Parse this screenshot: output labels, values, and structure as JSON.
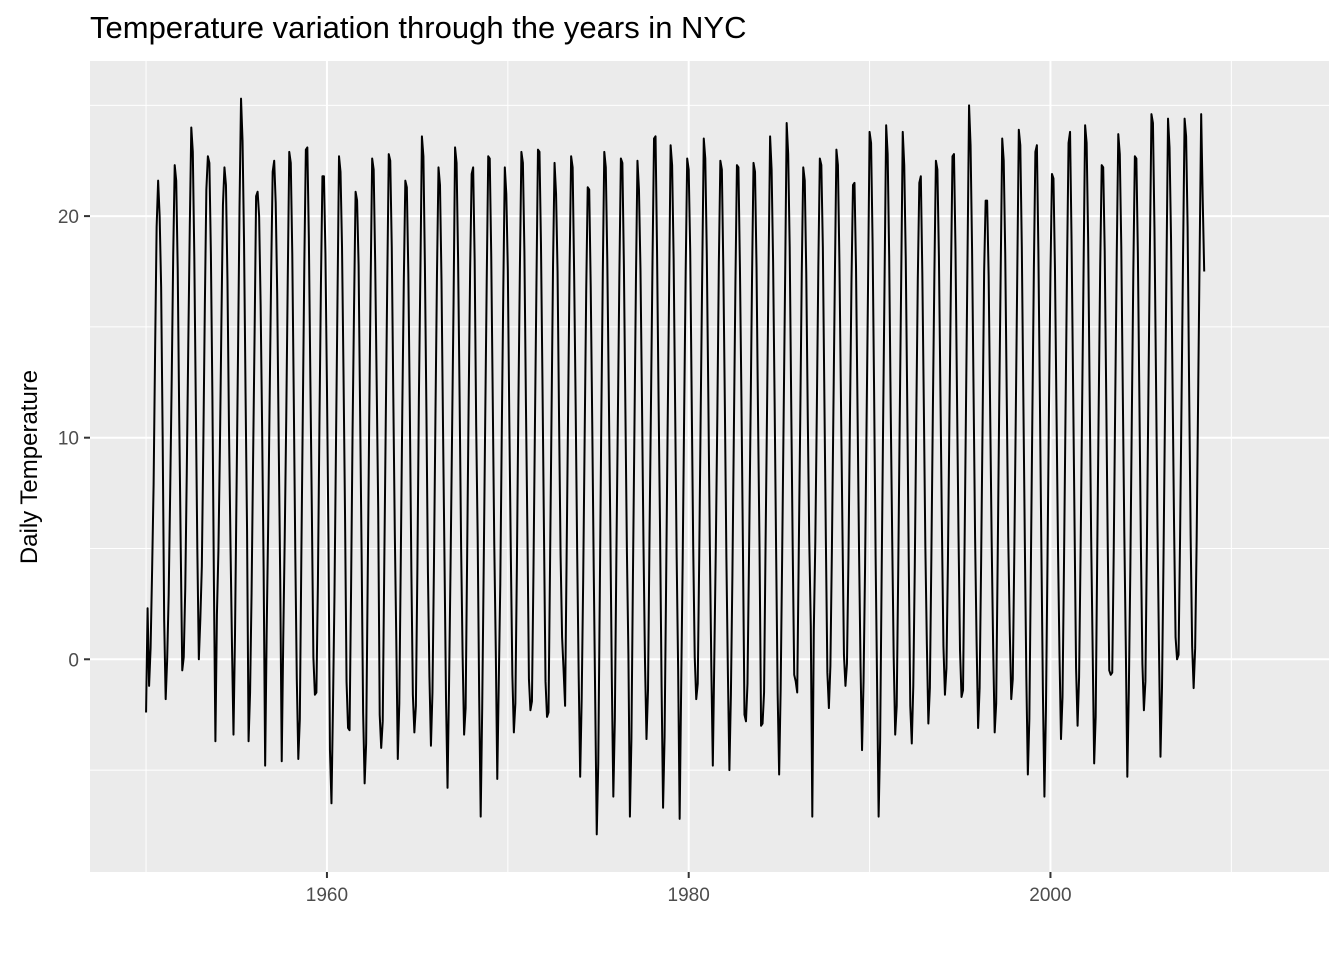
{
  "chart_data": {
    "type": "line",
    "title": "Temperature variation through the years in NYC",
    "xlabel": "",
    "ylabel": "Daily Temperature",
    "xlim": [
      1946.9,
      2015.4
    ],
    "ylim": [
      -9.6,
      27.0
    ],
    "x_ticks": [
      1960,
      1980,
      2000
    ],
    "y_ticks": [
      0,
      10,
      20
    ],
    "grid": true,
    "legend": "none",
    "colors": {
      "panel": "#ebebeb",
      "grid": "#ffffff",
      "line": "#000000",
      "tick_text": "#4d4d4d"
    },
    "series": [
      {
        "x_start": 1950.0,
        "x_step_years": 0.0833333,
        "values_note_unit": "degrees",
        "values": [
          -2.4,
          2.3,
          -1.2,
          0.5,
          4.0,
          7.9,
          14.0,
          19.5,
          21.6,
          20.0,
          16.8,
          10.1,
          1.8,
          -1.8,
          0.0,
          2.9,
          7.6,
          12.6,
          18.2,
          22.3,
          21.6,
          17.6,
          10.9,
          5.0,
          -0.5,
          0.1,
          3.2,
          8.4,
          14.2,
          19.5,
          24.0,
          22.9,
          18.2,
          11.5,
          5.0,
          0.0,
          1.8,
          4.2,
          9.8,
          16.0,
          21.2,
          22.7,
          22.4,
          18.3,
          11.9,
          3.5,
          -3.7,
          2.0,
          4.9,
          9.6,
          15.3,
          20.5,
          22.2,
          21.4,
          17.1,
          10.5,
          5.2,
          0.6,
          -3.4,
          1.1,
          7.5,
          13.8,
          20.4,
          25.3,
          23.4,
          18.8,
          12.0,
          5.8,
          -3.7,
          -1.5,
          3.0,
          9.0,
          14.7,
          20.9,
          21.1,
          20.0,
          16.0,
          10.4,
          4.0,
          -4.8,
          1.2,
          6.0,
          11.8,
          17.5,
          22.0,
          22.5,
          20.6,
          16.5,
          9.8,
          3.6,
          -4.6,
          0.9,
          5.5,
          10.9,
          17.2,
          22.9,
          22.4,
          18.3,
          11.7,
          4.8,
          -0.9,
          -4.5,
          -2.7,
          4.5,
          11.2,
          17.9,
          23.0,
          23.1,
          19.0,
          12.6,
          6.6,
          0.1,
          -1.6,
          -1.5,
          3.4,
          10.5,
          16.9,
          21.8,
          21.8,
          18.3,
          12.3,
          5.4,
          -4.1,
          -6.5,
          -2.1,
          2.9,
          9.7,
          16.3,
          22.7,
          22.0,
          18.6,
          12.8,
          6.5,
          -1.0,
          -3.1,
          -3.2,
          3.1,
          10.3,
          16.0,
          21.1,
          20.7,
          17.8,
          11.2,
          4.7,
          -2.4,
          -5.6,
          -3.8,
          3.3,
          10.5,
          17.1,
          22.6,
          22.1,
          17.9,
          12.4,
          6.8,
          -2.5,
          -4.0,
          -2.8,
          4.0,
          10.6,
          17.0,
          22.8,
          22.5,
          18.6,
          12.0,
          5.8,
          0.9,
          -4.5,
          -2.0,
          4.6,
          11.3,
          17.1,
          21.6,
          21.3,
          17.4,
          11.2,
          4.0,
          -1.6,
          -3.3,
          -2.1,
          4.1,
          11.8,
          17.5,
          23.6,
          22.7,
          17.7,
          11.1,
          3.9,
          -0.8,
          -3.9,
          -1.5,
          4.3,
          11.1,
          17.4,
          22.2,
          21.4,
          17.1,
          10.5,
          4.4,
          -1.8,
          -5.8,
          -1.2,
          4.2,
          10.1,
          16.1,
          23.1,
          22.4,
          18.1,
          11.9,
          5.1,
          0.2,
          -3.4,
          -2.2,
          4.6,
          11.5,
          17.6,
          21.9,
          22.2,
          18.0,
          10.6,
          5.5,
          -1.7,
          -7.1,
          -2.2,
          4.2,
          10.8,
          17.1,
          22.7,
          22.6,
          18.2,
          11.7,
          5.2,
          0.5,
          -5.4,
          -1.0,
          3.4,
          10.3,
          16.7,
          22.2,
          21.0,
          17.6,
          10.7,
          4.7,
          -0.7,
          -3.3,
          -2.0,
          4.1,
          11.4,
          17.6,
          22.9,
          22.4,
          18.4,
          11.6,
          5.7,
          -0.9,
          -2.3,
          -1.9,
          3.9,
          10.6,
          17.0,
          23.0,
          22.9,
          18.7,
          12.4,
          5.6,
          -1.0,
          -2.6,
          -2.4,
          4.2,
          11.0,
          17.8,
          22.4,
          21.0,
          17.5,
          10.8,
          4.7,
          1.0,
          -0.5,
          -2.1,
          4.6,
          11.3,
          17.8,
          22.7,
          22.2,
          17.4,
          11.5,
          4.9,
          -0.7,
          -5.3,
          -1.8,
          3.6,
          10.2,
          16.6,
          21.3,
          21.2,
          16.8,
          10.7,
          4.0,
          -2.0,
          -7.9,
          -4.7,
          2.8,
          10.7,
          17.4,
          22.9,
          22.2,
          18.0,
          12.0,
          5.9,
          -0.9,
          -6.2,
          -2.7,
          4.5,
          10.9,
          17.3,
          22.6,
          22.4,
          17.8,
          11.3,
          4.9,
          0.2,
          -7.1,
          -3.6,
          3.7,
          10.4,
          17.1,
          22.5,
          21.2,
          17.6,
          11.7,
          5.2,
          -0.1,
          -3.6,
          -1.4,
          5.5,
          11.7,
          18.0,
          23.5,
          23.6,
          18.4,
          11.8,
          5.8,
          -1.2,
          -6.7,
          -3.5,
          3.3,
          10.3,
          16.6,
          23.2,
          22.3,
          18.1,
          11.4,
          4.7,
          -0.5,
          -7.2,
          -1.3,
          4.4,
          11.2,
          17.5,
          22.6,
          22.1,
          18.4,
          11.7,
          5.0,
          0.1,
          -1.8,
          -1.1,
          4.7,
          11.4,
          17.6,
          23.5,
          22.6,
          18.3,
          12.0,
          5.3,
          -0.3,
          -4.8,
          0.1,
          5.1,
          11.0,
          17.9,
          22.5,
          22.1,
          17.5,
          11.4,
          4.6,
          -0.6,
          -5.0,
          -1.6,
          3.8,
          10.5,
          17.0,
          22.3,
          22.2,
          17.6,
          11.7,
          4.9,
          -2.5,
          -2.8,
          -1.1,
          4.5,
          10.7,
          17.1,
          22.4,
          22.0,
          17.7,
          11.0,
          5.0,
          -3.0,
          -2.9,
          -1.5,
          5.2,
          11.4,
          17.8,
          23.6,
          22.1,
          17.9,
          11.6,
          4.9,
          -1.5,
          -5.2,
          -1.4,
          4.6,
          11.0,
          17.4,
          24.2,
          22.8,
          18.6,
          11.6,
          5.0,
          -0.7,
          -1.0,
          -1.5,
          4.7,
          10.8,
          17.4,
          22.2,
          21.6,
          17.4,
          10.9,
          5.3,
          1.5,
          -7.1,
          1.3,
          5.3,
          11.2,
          17.7,
          22.6,
          22.3,
          18.6,
          11.9,
          5.4,
          -0.6,
          -2.2,
          -0.3,
          4.9,
          11.2,
          17.4,
          23.0,
          22.3,
          17.9,
          11.8,
          5.9,
          0.2,
          -1.2,
          -0.2,
          4.6,
          11.0,
          17.1,
          21.4,
          21.5,
          17.7,
          11.3,
          5.0,
          -0.3,
          -4.1,
          -1.0,
          4.1,
          10.6,
          17.0,
          23.8,
          23.3,
          18.8,
          12.1,
          4.7,
          -1.2,
          -7.1,
          -3.7,
          3.7,
          10.8,
          17.5,
          24.1,
          22.8,
          18.2,
          11.4,
          5.5,
          0.1,
          -3.4,
          -2.1,
          3.9,
          10.8,
          17.3,
          23.8,
          22.3,
          18.1,
          11.5,
          4.4,
          -2.1,
          -3.8,
          -1.2,
          4.2,
          10.9,
          17.2,
          21.5,
          21.8,
          17.4,
          11.4,
          5.1,
          0.7,
          -2.9,
          -1.3,
          4.6,
          11.3,
          17.4,
          22.5,
          22.1,
          18.2,
          12.1,
          5.9,
          0.6,
          -1.6,
          -0.4,
          4.5,
          11.0,
          17.3,
          22.7,
          22.8,
          18.5,
          11.9,
          5.6,
          0.4,
          -1.7,
          -1.4,
          4.9,
          11.6,
          18.3,
          25.0,
          23.2,
          18.5,
          12.0,
          5.5,
          0.8,
          -3.1,
          -1.3,
          4.3,
          10.8,
          17.5,
          20.7,
          20.7,
          17.3,
          11.2,
          5.3,
          0.5,
          -3.3,
          -2.0,
          4.6,
          11.4,
          17.6,
          23.5,
          22.5,
          18.3,
          11.8,
          5.5,
          1.3,
          -1.8,
          -0.9,
          4.7,
          11.0,
          17.5,
          23.9,
          23.2,
          18.6,
          11.9,
          5.3,
          -0.8,
          -5.2,
          -2.7,
          4.1,
          11.0,
          17.6,
          22.9,
          23.2,
          18.4,
          11.7,
          4.8,
          -1.5,
          -6.2,
          -2.3,
          4.2,
          11.2,
          17.4,
          21.9,
          21.7,
          17.6,
          11.3,
          5.1,
          0.2,
          -3.6,
          -1.7,
          4.4,
          11.1,
          17.7,
          23.3,
          23.8,
          18.9,
          12.5,
          6.0,
          -0.4,
          -3.0,
          -0.8,
          4.9,
          11.3,
          17.8,
          24.1,
          23.3,
          19.0,
          12.1,
          5.5,
          0.4,
          -4.7,
          -2.6,
          4.5,
          11.3,
          17.7,
          22.3,
          22.2,
          18.4,
          11.9,
          5.2,
          -0.5,
          -0.7,
          -0.6,
          5.0,
          11.8,
          18.3,
          23.7,
          22.8,
          18.6,
          12.0,
          5.7,
          0.5,
          -5.3,
          -1.4,
          4.1,
          11.0,
          17.6,
          22.7,
          22.6,
          18.3,
          11.8,
          5.1,
          -0.2,
          -2.3,
          -1.0,
          5.3,
          12.1,
          18.6,
          24.6,
          24.2,
          19.5,
          12.9,
          6.0,
          0.5,
          -4.4,
          -1.3,
          4.5,
          11.2,
          17.8,
          24.4,
          23.1,
          19.0,
          12.4,
          6.1,
          1.0,
          0.0,
          0.2,
          5.5,
          11.9,
          18.4,
          24.4,
          23.6,
          19.5,
          12.3,
          5.6,
          0.6,
          -1.3,
          0.5,
          5.4,
          12.0,
          18.4,
          24.6,
          20.8,
          17.5
        ]
      }
    ]
  }
}
